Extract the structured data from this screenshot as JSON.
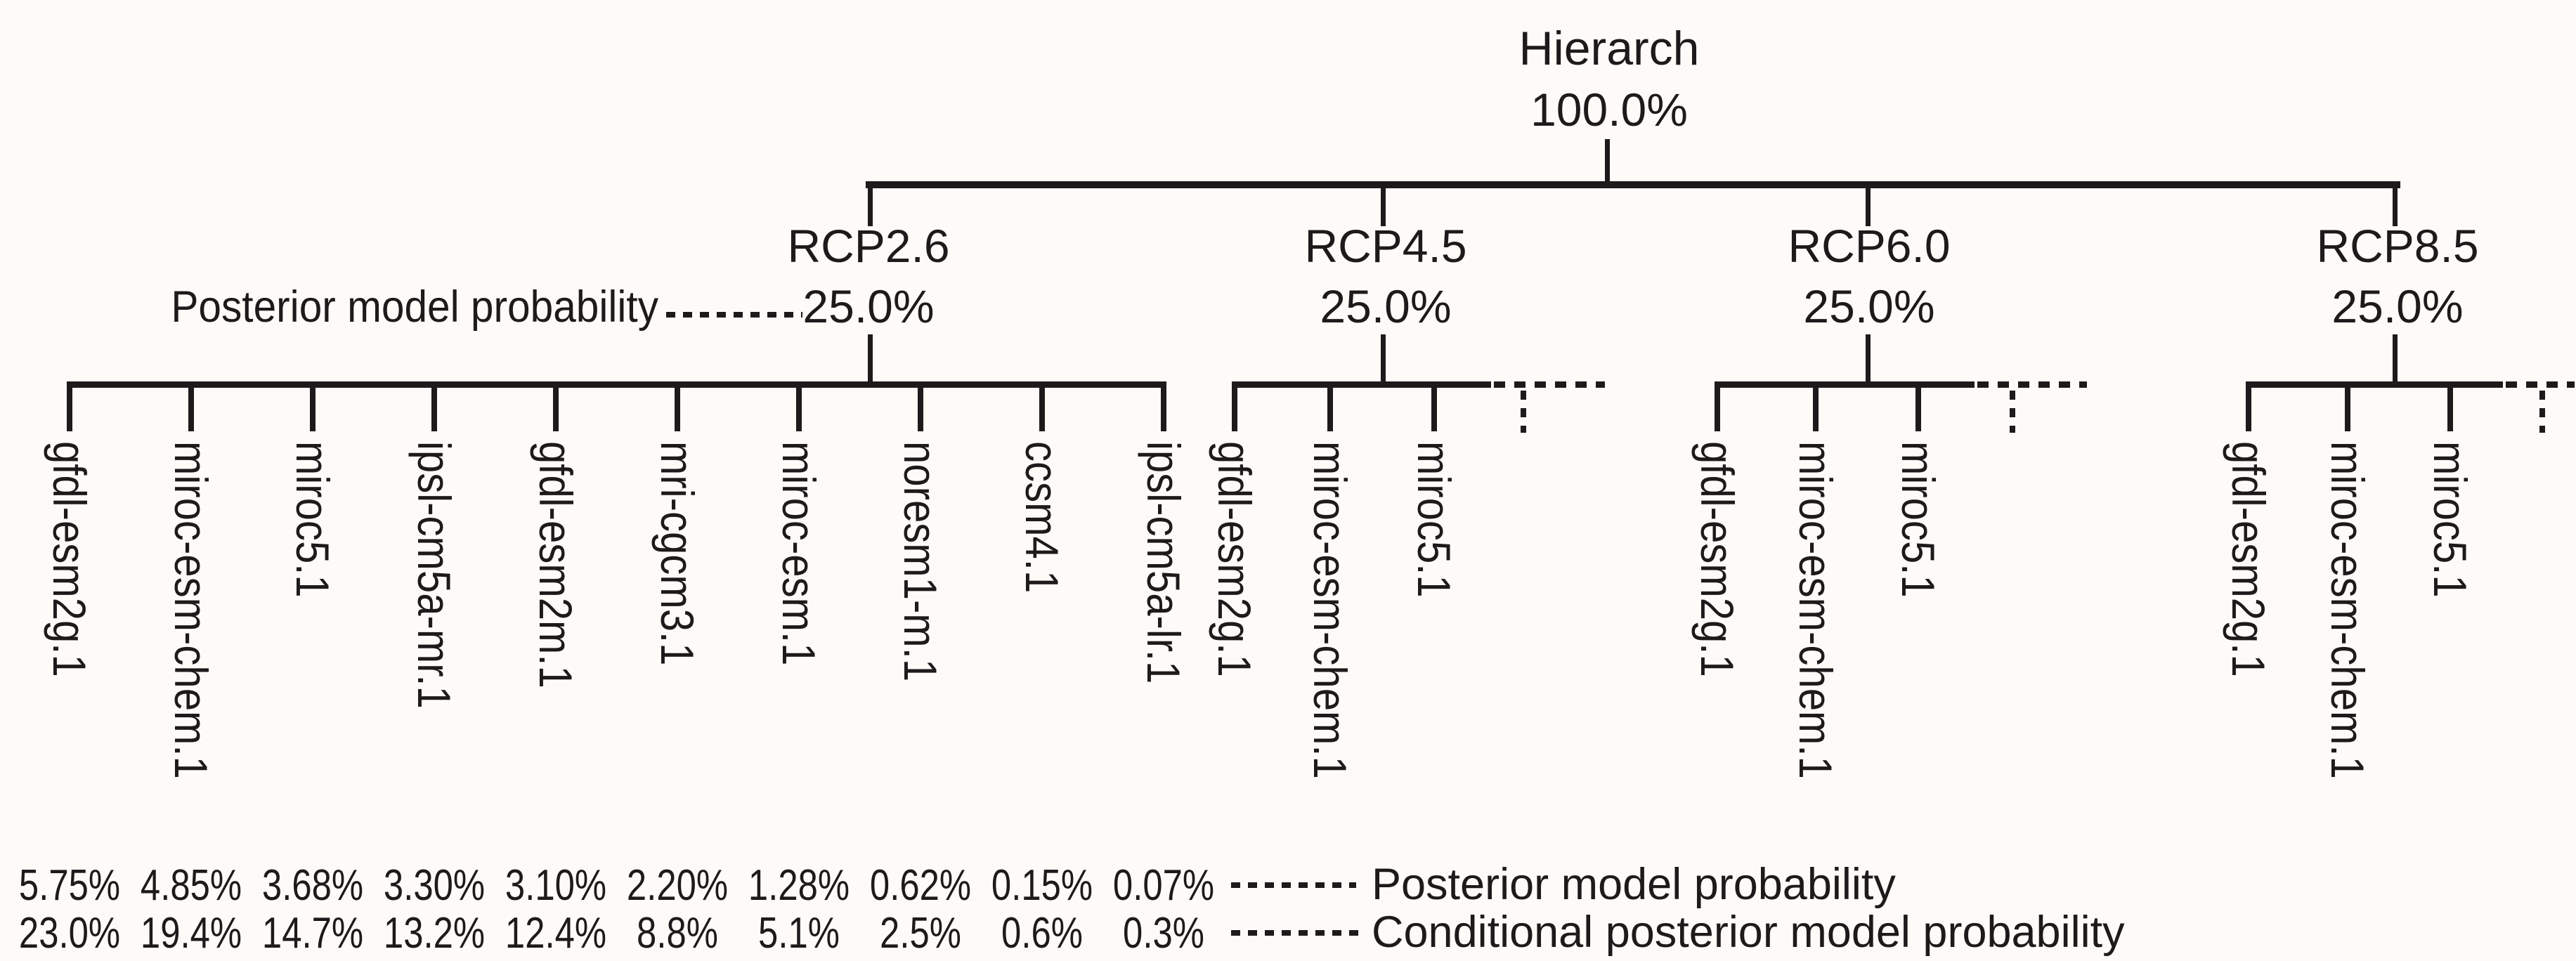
{
  "colors": {
    "ink": "#1e1a1b",
    "background": "#fcfbf8"
  },
  "root": {
    "label": "Hierarch",
    "probability": "100.0%"
  },
  "probability_annotation_label": "Posterior model probability",
  "scenarios": [
    {
      "label": "RCP2.6",
      "probability": "25.0%",
      "truncated": false,
      "models": [
        "gfdl-esm2g.1",
        "miroc-esm-chem.1",
        "miroc5.1",
        "ipsl-cm5a-mr.1",
        "gfdl-esm2m.1",
        "mri-cgcm3.1",
        "miroc-esm.1",
        "noresm1-m.1",
        "ccsm4.1",
        "ipsl-cm5a-lr.1"
      ]
    },
    {
      "label": "RCP4.5",
      "probability": "25.0%",
      "truncated": true,
      "models": [
        "gfdl-esm2g.1",
        "miroc-esm-chem.1",
        "miroc5.1"
      ]
    },
    {
      "label": "RCP6.0",
      "probability": "25.0%",
      "truncated": true,
      "models": [
        "gfdl-esm2g.1",
        "miroc-esm-chem.1",
        "miroc5.1"
      ]
    },
    {
      "label": "RCP8.5",
      "probability": "25.0%",
      "truncated": true,
      "models": [
        "gfdl-esm2g.1",
        "miroc-esm-chem.1",
        "miroc5.1"
      ]
    }
  ],
  "bottom_rows": [
    {
      "legend": "Posterior model probability",
      "values": [
        "5.75%",
        "4.85%",
        "3.68%",
        "3.30%",
        "3.10%",
        "2.20%",
        "1.28%",
        "0.62%",
        "0.15%",
        "0.07%"
      ]
    },
    {
      "legend": "Conditional posterior model probability",
      "values": [
        "23.0%",
        "19.4%",
        "14.7%",
        "13.2%",
        "12.4%",
        "8.8%",
        "5.1%",
        "2.5%",
        "0.6%",
        "0.3%"
      ]
    }
  ]
}
